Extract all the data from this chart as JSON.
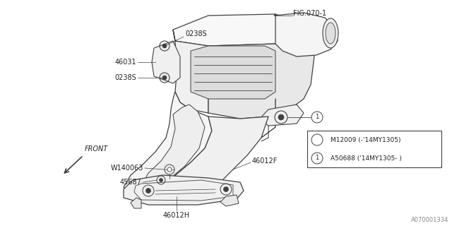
{
  "bg_color": "#ffffff",
  "line_color": "#404040",
  "text_color": "#222222",
  "fig_ref": "FIG.070-1",
  "doc_ref": "A070001334",
  "legend_row1": "M12009 (-'14MY1305)",
  "legend_row2": "A50688 ('14MY1305- )"
}
